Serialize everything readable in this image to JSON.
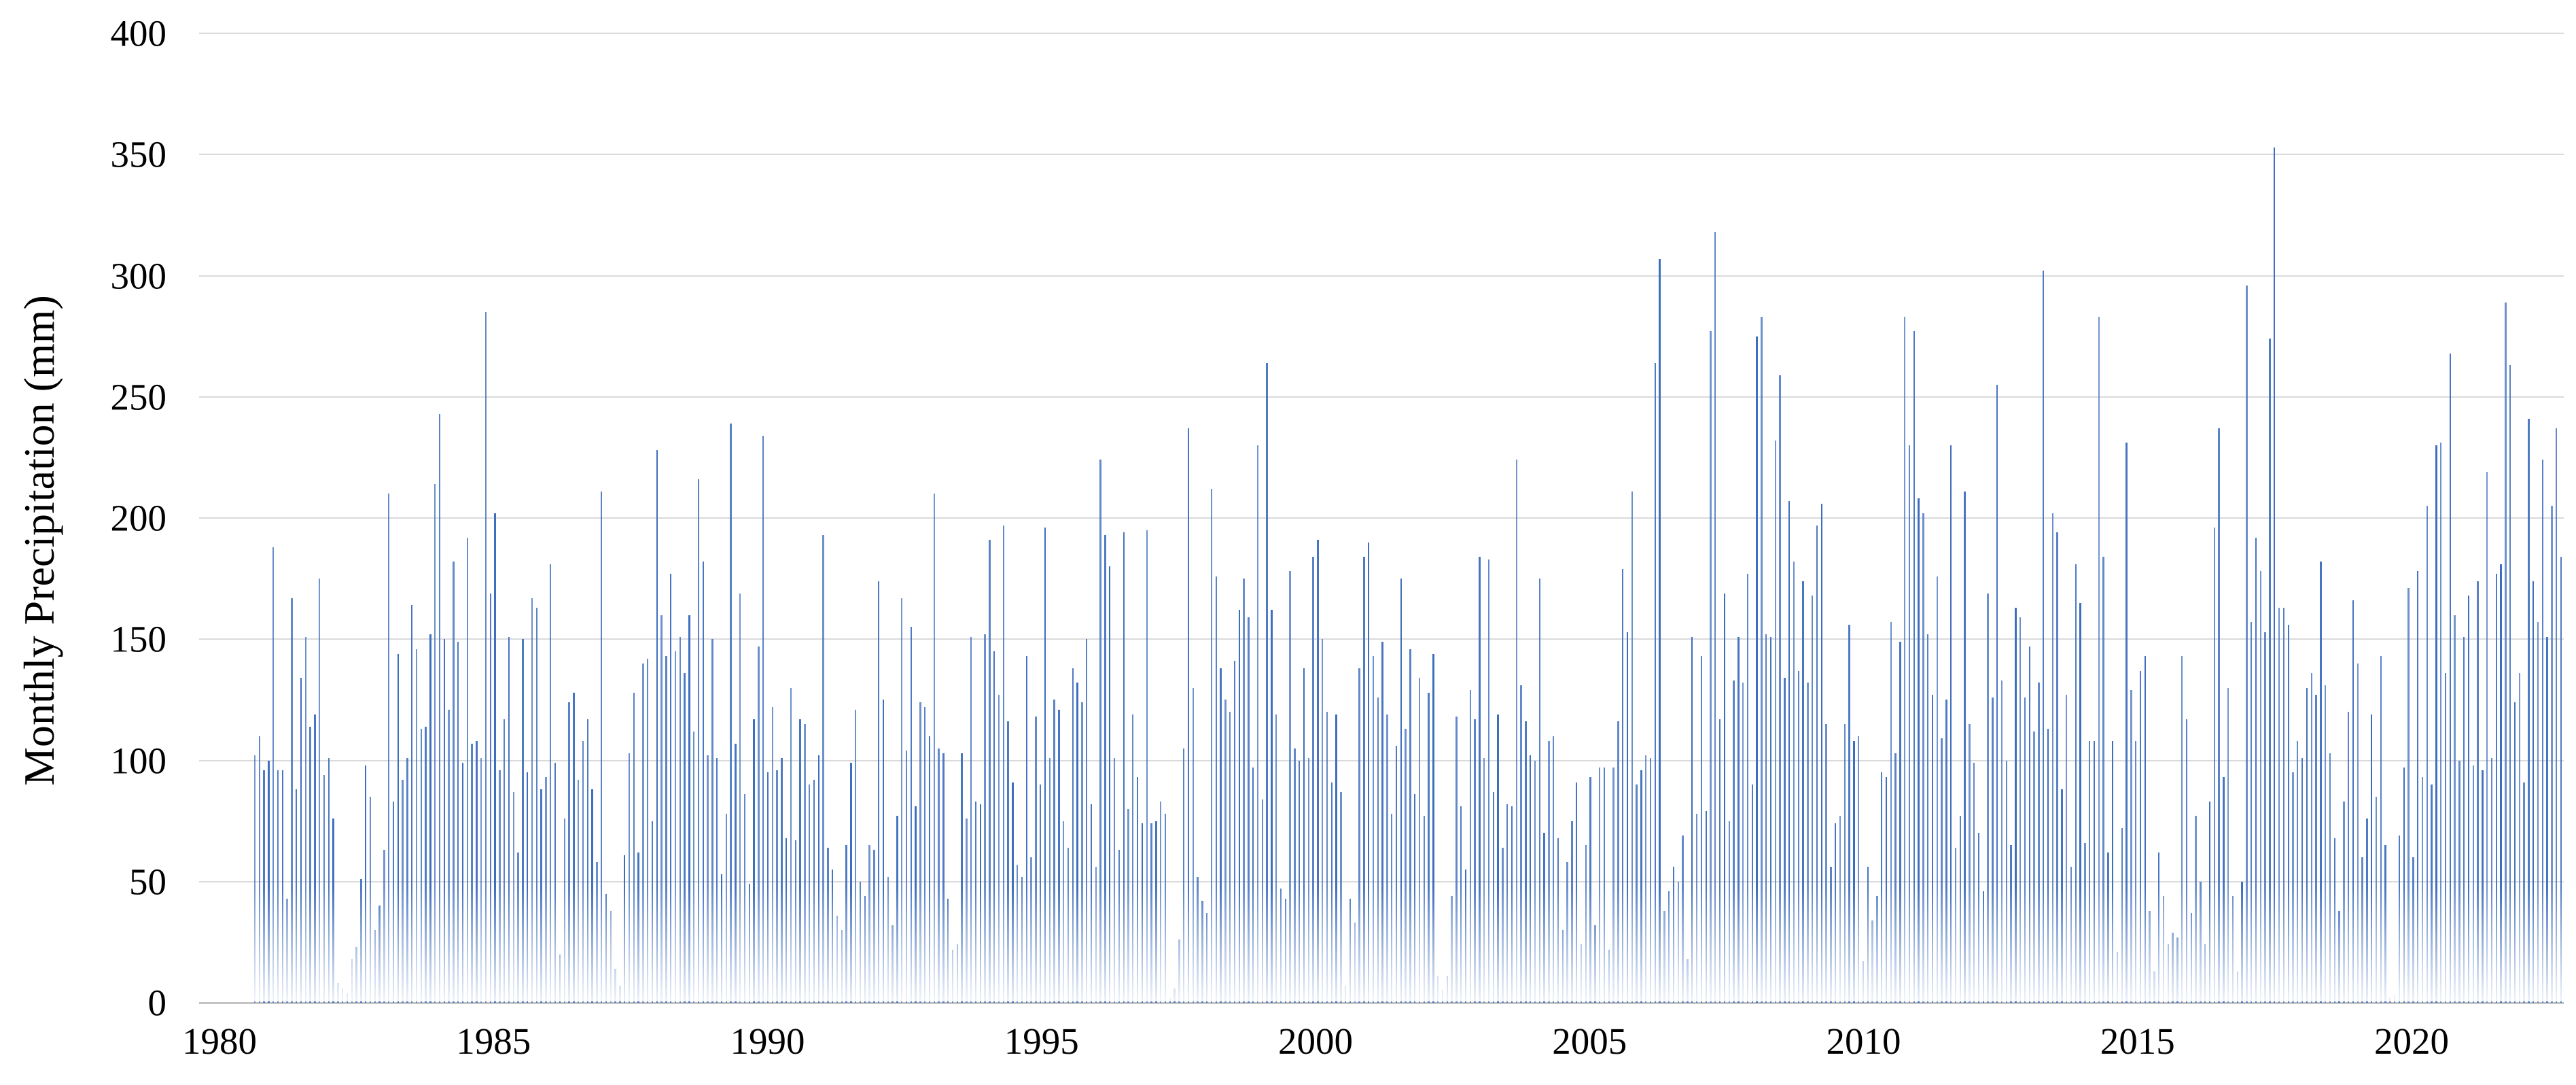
{
  "chart_data": {
    "type": "bar",
    "title": "",
    "xlabel": "",
    "ylabel": "Monthly Precipitation (mm)",
    "ylim": [
      0,
      400
    ],
    "yticks": [
      0,
      50,
      100,
      150,
      200,
      250,
      300,
      350,
      400
    ],
    "xticks": [
      1980,
      1985,
      1990,
      1995,
      2000,
      2005,
      2010,
      2015,
      2020
    ],
    "grid": "horizontal",
    "legend": "none",
    "series_name": "Monthly precipitation",
    "frequency": "monthly",
    "start_label": "1981-01",
    "values": [
      102,
      110,
      96,
      100,
      188,
      96,
      96,
      43,
      167,
      88,
      134,
      151,
      114,
      119,
      175,
      94,
      101,
      76,
      8,
      6,
      4,
      18,
      23,
      51,
      98,
      85,
      30,
      40,
      63,
      210,
      83,
      144,
      92,
      101,
      164,
      146,
      113,
      114,
      152,
      214,
      243,
      150,
      121,
      182,
      149,
      99,
      192,
      107,
      108,
      101,
      285,
      169,
      202,
      96,
      117,
      151,
      87,
      62,
      150,
      95,
      167,
      163,
      88,
      93,
      181,
      99,
      20,
      76,
      124,
      128,
      92,
      108,
      117,
      88,
      58,
      211,
      45,
      38,
      14,
      7,
      61,
      103,
      128,
      62,
      140,
      142,
      75,
      228,
      160,
      143,
      177,
      145,
      151,
      136,
      160,
      112,
      216,
      182,
      102,
      150,
      101,
      53,
      78,
      239,
      107,
      169,
      86,
      49,
      117,
      147,
      234,
      95,
      122,
      96,
      101,
      68,
      130,
      67,
      117,
      115,
      90,
      92,
      102,
      193,
      64,
      55,
      36,
      30,
      65,
      99,
      121,
      50,
      44,
      65,
      63,
      174,
      125,
      52,
      32,
      77,
      167,
      104,
      155,
      81,
      124,
      122,
      110,
      210,
      105,
      103,
      43,
      22,
      24,
      103,
      76,
      151,
      83,
      82,
      152,
      191,
      145,
      127,
      197,
      116,
      91,
      57,
      52,
      143,
      60,
      118,
      90,
      196,
      101,
      125,
      121,
      75,
      64,
      138,
      132,
      124,
      150,
      82,
      56,
      224,
      193,
      180,
      101,
      63,
      194,
      80,
      119,
      93,
      74,
      195,
      74,
      75,
      83,
      78,
      2,
      6,
      26,
      105,
      237,
      130,
      52,
      42,
      37,
      212,
      176,
      138,
      125,
      120,
      141,
      162,
      175,
      159,
      97,
      230,
      84,
      264,
      162,
      119,
      47,
      43,
      178,
      105,
      100,
      138,
      101,
      184,
      191,
      150,
      120,
      91,
      119,
      87,
      7,
      43,
      33,
      138,
      184,
      190,
      143,
      126,
      149,
      119,
      78,
      106,
      175,
      113,
      146,
      86,
      134,
      77,
      128,
      144,
      11,
      5,
      11,
      44,
      118,
      81,
      55,
      129,
      117,
      184,
      101,
      183,
      87,
      119,
      64,
      82,
      81,
      224,
      131,
      116,
      102,
      100,
      175,
      70,
      108,
      110,
      68,
      30,
      58,
      75,
      91,
      24,
      65,
      93,
      32,
      97,
      97,
      22,
      97,
      116,
      179,
      153,
      211,
      90,
      96,
      102,
      101,
      264,
      307,
      38,
      46,
      56,
      50,
      69,
      18,
      151,
      78,
      143,
      79,
      277,
      318,
      117,
      169,
      75,
      133,
      151,
      132,
      177,
      90,
      275,
      283,
      152,
      151,
      232,
      259,
      134,
      207,
      182,
      137,
      174,
      132,
      168,
      197,
      206,
      115,
      56,
      74,
      77,
      115,
      156,
      108,
      110,
      17,
      56,
      34,
      44,
      95,
      93,
      157,
      103,
      149,
      283,
      230,
      277,
      208,
      202,
      152,
      127,
      176,
      109,
      125,
      230,
      64,
      77,
      211,
      115,
      99,
      70,
      46,
      169,
      126,
      255,
      133,
      100,
      65,
      163,
      159,
      126,
      147,
      112,
      132,
      302,
      113,
      202,
      194,
      88,
      127,
      56,
      181,
      165,
      66,
      108,
      108,
      283,
      184,
      62,
      108,
      21,
      72,
      231,
      129,
      108,
      137,
      143,
      38,
      13,
      62,
      44,
      24,
      29,
      27,
      143,
      117,
      37,
      77,
      50,
      24,
      83,
      196,
      237,
      93,
      130,
      44,
      13,
      50,
      296,
      157,
      192,
      178,
      153,
      274,
      353,
      163,
      163,
      156,
      95,
      108,
      101,
      130,
      136,
      127,
      182,
      131,
      103,
      68,
      38,
      83,
      120,
      166,
      140,
      60,
      76,
      119,
      85,
      143,
      65,
      2,
      3,
      69,
      97,
      171,
      60,
      178,
      93,
      205,
      90,
      230,
      231,
      136,
      268,
      160,
      100,
      151,
      168,
      98,
      174,
      96,
      219,
      101,
      177,
      181,
      289,
      263,
      124,
      136,
      91,
      241,
      174,
      157,
      224,
      151,
      205,
      237,
      184
    ]
  },
  "style": {
    "bar_color": "#3E6EBE",
    "gridline_color": "#DADADA",
    "baseline_color": "#C3C3C3",
    "text_color": "#000000",
    "background_color": "#FFFFFF"
  },
  "layout_note": "values are mm read from chart pixels; bars run left-to-right chronologically from 1981 to ~2023"
}
